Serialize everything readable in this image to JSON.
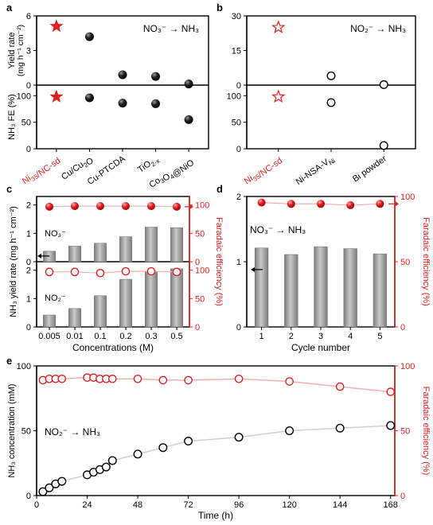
{
  "panel_labels": [
    "a",
    "b",
    "c",
    "d",
    "e"
  ],
  "colors": {
    "red": "#e02020",
    "black": "#000000",
    "bar": "#9a9a9a",
    "line_grey": "#cfcfcf",
    "line_red": "#f3b0b0"
  },
  "chart_data": [
    {
      "id": "a",
      "type": "scatter",
      "annotation": "NO₃⁻ → NH₃",
      "categories": [
        "Ni35/NC-sd",
        "Cu/Cu2O",
        "Cu-PTCDA",
        "TiO2-x",
        "Co3O4@NiO"
      ],
      "category_display": [
        {
          "base": "Ni",
          "sub": "35",
          "rest": "/NC-sd",
          "color": "#e02020"
        },
        {
          "base": "Cu/Cu",
          "sub": "2",
          "rest": "O",
          "color": "#000000"
        },
        {
          "base": "Cu-PTCDA",
          "sub": "",
          "rest": "",
          "color": "#000000"
        },
        {
          "base": "TiO",
          "sub": "2-x",
          "rest": "",
          "color": "#000000"
        },
        {
          "base": "Co",
          "sub": "3",
          "rest": "O",
          "sub2": "4",
          "rest2": "@NiO",
          "color": "#000000"
        }
      ],
      "top": {
        "ylabel": "Yield rate",
        "ylabel_unit": "(mg h⁻¹ cm⁻²)",
        "ylim": [
          0,
          6
        ],
        "ticks": [
          0,
          3,
          6
        ],
        "values": [
          5.1,
          4.2,
          0.9,
          0.75,
          0.1
        ]
      },
      "bottom": {
        "ylabel": "NH₃ FE (%)",
        "ylim": [
          0,
          120
        ],
        "ticks": [
          0,
          50,
          100
        ],
        "values": [
          98,
          96,
          86,
          85,
          55
        ]
      },
      "markers": [
        "star-filled",
        "ball",
        "ball",
        "ball",
        "ball"
      ]
    },
    {
      "id": "b",
      "type": "scatter",
      "annotation": "NO₂⁻ → NH₃",
      "categories": [
        "Ni35/NC-sd",
        "Ni-NSA-VNi",
        "Bi powder"
      ],
      "category_display": [
        {
          "base": "Ni",
          "sub": "35",
          "rest": "/NC-sd",
          "color": "#e02020"
        },
        {
          "base": "Ni-NSA-V",
          "sub": "Ni",
          "rest": "",
          "color": "#000000"
        },
        {
          "base": "Bi powder",
          "sub": "",
          "rest": "",
          "color": "#000000"
        }
      ],
      "top": {
        "ylim": [
          0,
          30
        ],
        "ticks": [
          0,
          15,
          30
        ],
        "values": [
          25,
          4,
          0.2
        ]
      },
      "bottom": {
        "ylim": [
          0,
          120
        ],
        "ticks": [
          0,
          50,
          100
        ],
        "values": [
          98,
          87,
          6
        ]
      },
      "markers": [
        "star-open",
        "circle-open",
        "circle-open"
      ]
    },
    {
      "id": "c",
      "type": "bar",
      "categories": [
        "0.005",
        "0.01",
        "0.1",
        "0.2",
        "0.3",
        "0.5"
      ],
      "xlabel": "Concentrations (M)",
      "ylabel": "NH₃ yield rate (mg h⁻¹ cm⁻²)",
      "ylabel_right": "Faradaic efficiency (%)",
      "top": {
        "annotation": "NO₃⁻",
        "ylim": [
          0,
          2.3
        ],
        "ticks": [
          0,
          1,
          2
        ],
        "values": [
          0.37,
          0.55,
          0.65,
          0.88,
          1.22,
          1.2
        ],
        "fe_ylim": [
          0,
          115
        ],
        "fe_ticks": [
          0,
          50,
          100
        ],
        "fe_values": [
          97,
          98,
          98,
          98,
          98,
          97
        ]
      },
      "bottom": {
        "annotation": "NO₂⁻",
        "ylim": [
          0,
          2.3
        ],
        "ticks": [
          0,
          1,
          2
        ],
        "values": [
          0.42,
          0.65,
          1.1,
          1.68,
          1.95,
          2.05
        ],
        "fe_ylim": [
          0,
          115
        ],
        "fe_ticks": [
          0,
          50,
          100
        ],
        "fe_values": [
          97,
          97,
          95,
          98,
          98,
          97
        ]
      }
    },
    {
      "id": "d",
      "type": "bar",
      "categories": [
        "1",
        "2",
        "3",
        "4",
        "5"
      ],
      "xlabel": "Cycle number",
      "ylabel_right": "Faradaic efficiency (%)",
      "annotation": "NO₃⁻ → NH₃",
      "ylim": [
        0,
        2
      ],
      "ticks": [
        0,
        1,
        2
      ],
      "values": [
        1.21,
        1.11,
        1.23,
        1.2,
        1.12
      ],
      "fe_ylim": [
        0,
        100
      ],
      "fe_ticks": [
        0,
        50,
        100
      ],
      "fe_values": [
        99,
        98,
        98,
        97,
        98
      ]
    },
    {
      "id": "e",
      "type": "line",
      "xlabel": "Time (h)",
      "ylabel": "NH₃ concentration (mM)",
      "ylabel_right": "Faradaic efficiency (%)",
      "annotation": "NO₂⁻ → NH₃",
      "xlim": [
        0,
        170
      ],
      "xticks": [
        0,
        24,
        48,
        72,
        96,
        120,
        144,
        168
      ],
      "ylim": [
        0,
        100
      ],
      "yticks": [
        0,
        50,
        100
      ],
      "fe_ylim": [
        0,
        100
      ],
      "fe_ticks": [
        0,
        50,
        100
      ],
      "series": [
        {
          "axis": "left",
          "x": [
            3,
            6,
            9,
            12,
            24,
            27,
            30,
            33,
            36,
            48,
            60,
            72,
            96,
            120,
            144,
            168
          ],
          "y": [
            3,
            6,
            9,
            11,
            16,
            18,
            20,
            22,
            27,
            32,
            37,
            42,
            45,
            50,
            52,
            54
          ]
        },
        {
          "axis": "right",
          "x": [
            3,
            6,
            9,
            12,
            24,
            27,
            30,
            33,
            36,
            48,
            60,
            72,
            96,
            120,
            144,
            168
          ],
          "y": [
            89,
            90,
            90,
            90,
            91,
            91,
            90,
            90,
            90,
            90,
            89,
            89,
            90,
            88,
            84,
            80
          ]
        }
      ]
    }
  ]
}
